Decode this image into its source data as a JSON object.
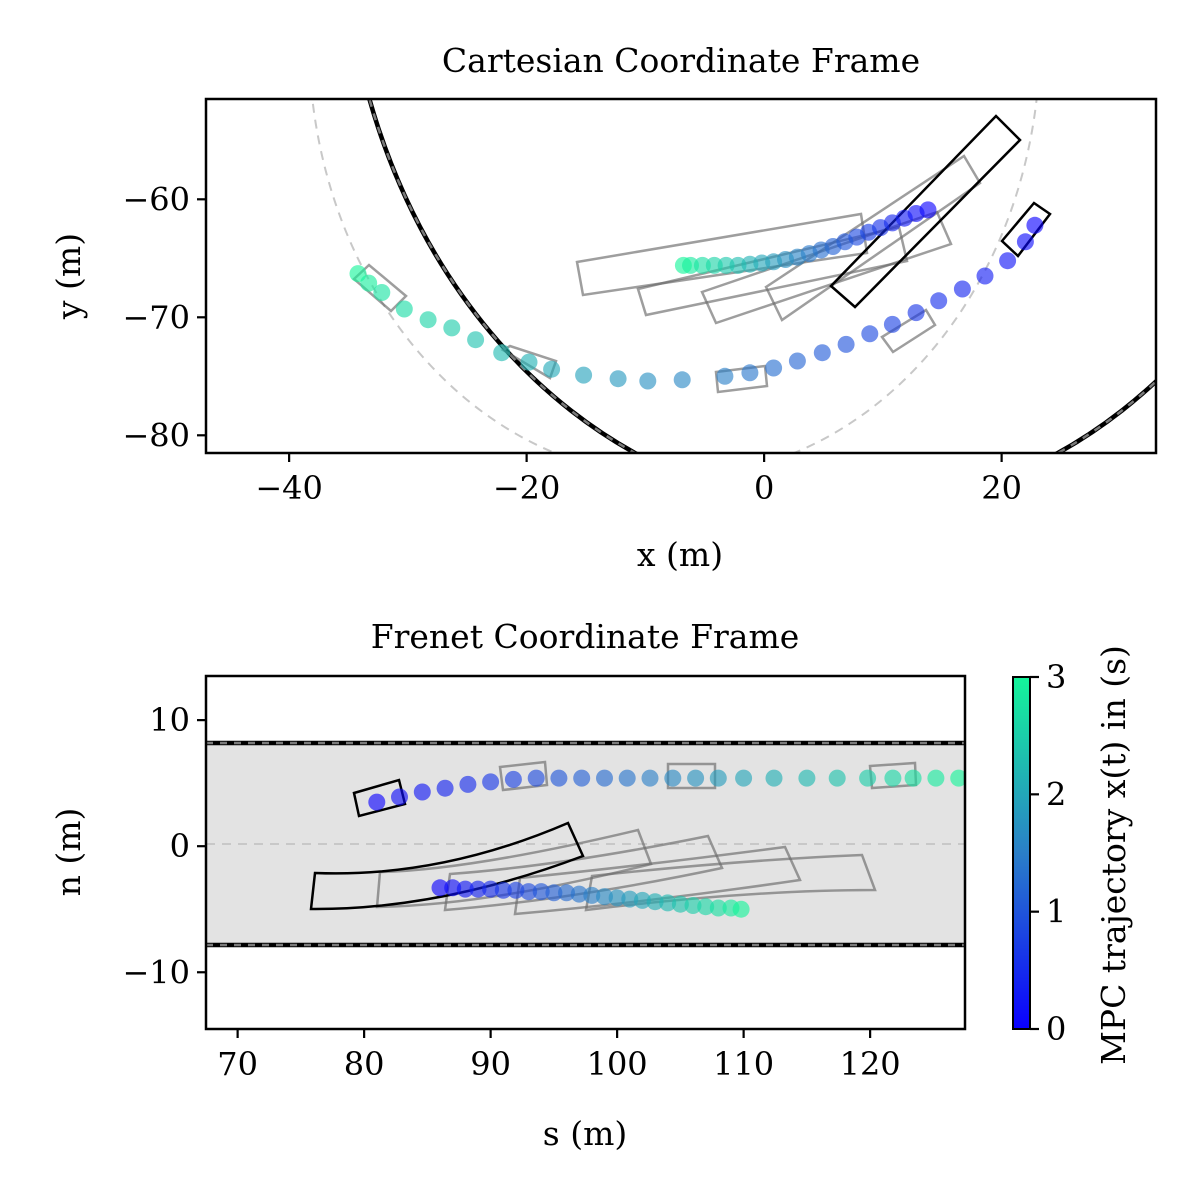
{
  "colors": {
    "road": "#e3e3e3",
    "boundary": "#000000",
    "boundary_dash": "#7a7a7a",
    "centerline": "#c8c8c8",
    "cmap_low": "#0a00ff",
    "cmap_mid": "#2a7fc8",
    "cmap_high": "#14f59a",
    "ghost_box": "#6a6a6a"
  },
  "colorbar": {
    "label": "MPC trajectory x(t) in (s)",
    "ticks": [
      "0",
      "1",
      "2",
      "3"
    ],
    "range": [
      0,
      3
    ]
  },
  "chart_data": [
    {
      "type": "scatter",
      "title": "Cartesian Coordinate Frame",
      "xlabel": "x (m)",
      "ylabel": "y (m)",
      "xlim": [
        -47,
        33
      ],
      "ylim": [
        -81.5,
        -51.5
      ],
      "xticks": [
        "−40",
        "−20",
        "0",
        "20"
      ],
      "xtick_values": [
        -40,
        -20,
        0,
        20
      ],
      "yticks": [
        "−60",
        "−70",
        "−80"
      ],
      "ytick_values": [
        -60,
        -70,
        -80
      ],
      "road": {
        "center": [
          -8,
          -52
        ],
        "inner_radius": 10,
        "outer_radius": 26,
        "centerline_radius": 18
      },
      "series": [
        {
          "points": [
            [
              22.8,
              -62.2
            ],
            [
              22.0,
              -63.6
            ],
            [
              20.5,
              -65.2
            ],
            [
              18.6,
              -66.5
            ],
            [
              16.7,
              -67.6
            ],
            [
              14.7,
              -68.6
            ],
            [
              12.8,
              -69.6
            ],
            [
              10.8,
              -70.6
            ],
            [
              8.9,
              -71.4
            ],
            [
              6.9,
              -72.3
            ],
            [
              4.9,
              -73.0
            ],
            [
              2.8,
              -73.7
            ],
            [
              0.8,
              -74.3
            ],
            [
              -1.2,
              -74.7
            ],
            [
              -3.3,
              -75.0
            ],
            [
              -6.9,
              -75.3
            ],
            [
              -9.8,
              -75.4
            ],
            [
              -12.3,
              -75.2
            ],
            [
              -15.2,
              -74.9
            ],
            [
              -17.9,
              -74.4
            ],
            [
              -19.8,
              -73.8
            ],
            [
              -22.1,
              -73.0
            ],
            [
              -24.3,
              -71.9
            ],
            [
              -26.3,
              -70.9
            ],
            [
              -28.3,
              -70.2
            ],
            [
              -30.3,
              -69.3
            ],
            [
              -32.2,
              -67.9
            ],
            [
              -33.3,
              -67.1
            ],
            [
              -34.2,
              -66.3
            ]
          ],
          "tmax": 3
        },
        {
          "points": [
            [
              13.8,
              -60.9
            ],
            [
              12.8,
              -61.2
            ],
            [
              11.8,
              -61.6
            ],
            [
              10.8,
              -62.0
            ],
            [
              9.8,
              -62.4
            ],
            [
              8.8,
              -62.8
            ],
            [
              7.8,
              -63.2
            ],
            [
              6.8,
              -63.6
            ],
            [
              5.8,
              -64.0
            ],
            [
              4.8,
              -64.3
            ],
            [
              3.8,
              -64.6
            ],
            [
              2.8,
              -64.9
            ],
            [
              1.8,
              -65.1
            ],
            [
              0.8,
              -65.3
            ],
            [
              -0.2,
              -65.4
            ],
            [
              -1.2,
              -65.5
            ],
            [
              -2.2,
              -65.6
            ],
            [
              -3.2,
              -65.6
            ],
            [
              -4.2,
              -65.6
            ],
            [
              -5.2,
              -65.6
            ],
            [
              -6.2,
              -65.6
            ],
            [
              -6.8,
              -65.6
            ]
          ],
          "tmax": 3
        }
      ]
    },
    {
      "type": "scatter",
      "title": "Frenet Coordinate Frame",
      "xlabel": "s (m)",
      "ylabel": "n (m)",
      "xlim": [
        67.5,
        127.5
      ],
      "ylim": [
        -14.5,
        13.5
      ],
      "xticks": [
        "70",
        "80",
        "90",
        "100",
        "110",
        "120"
      ],
      "xtick_values": [
        70,
        80,
        90,
        100,
        110,
        120
      ],
      "yticks": [
        "10",
        "0",
        "−10"
      ],
      "ytick_values": [
        10,
        0,
        -10
      ],
      "road": {
        "upper": 8,
        "lower": -8,
        "centerline": 0
      },
      "series": [
        {
          "points": [
            [
              81.0,
              3.5
            ],
            [
              82.8,
              3.9
            ],
            [
              84.6,
              4.3
            ],
            [
              86.4,
              4.6
            ],
            [
              88.2,
              4.9
            ],
            [
              90.0,
              5.1
            ],
            [
              91.8,
              5.3
            ],
            [
              93.6,
              5.4
            ],
            [
              95.4,
              5.4
            ],
            [
              97.2,
              5.4
            ],
            [
              99.0,
              5.4
            ],
            [
              100.8,
              5.4
            ],
            [
              102.6,
              5.4
            ],
            [
              104.4,
              5.4
            ],
            [
              106.2,
              5.4
            ],
            [
              108.0,
              5.4
            ],
            [
              110.0,
              5.4
            ],
            [
              112.4,
              5.4
            ],
            [
              115.0,
              5.4
            ],
            [
              117.4,
              5.4
            ],
            [
              119.8,
              5.4
            ],
            [
              121.8,
              5.4
            ],
            [
              123.4,
              5.4
            ],
            [
              125.2,
              5.4
            ],
            [
              127.0,
              5.4
            ]
          ],
          "tmax": 3
        },
        {
          "points": [
            [
              86.0,
              -3.3
            ],
            [
              87.0,
              -3.3
            ],
            [
              88.0,
              -3.4
            ],
            [
              89.0,
              -3.4
            ],
            [
              90.0,
              -3.4
            ],
            [
              91.0,
              -3.5
            ],
            [
              92.0,
              -3.5
            ],
            [
              93.0,
              -3.6
            ],
            [
              94.0,
              -3.6
            ],
            [
              95.0,
              -3.7
            ],
            [
              96.0,
              -3.7
            ],
            [
              97.0,
              -3.8
            ],
            [
              98.0,
              -3.9
            ],
            [
              99.0,
              -4.0
            ],
            [
              100.0,
              -4.1
            ],
            [
              101.0,
              -4.2
            ],
            [
              102.0,
              -4.3
            ],
            [
              103.0,
              -4.4
            ],
            [
              104.0,
              -4.5
            ],
            [
              105.0,
              -4.6
            ],
            [
              106.0,
              -4.7
            ],
            [
              107.0,
              -4.8
            ],
            [
              108.0,
              -4.9
            ],
            [
              109.0,
              -4.9
            ],
            [
              109.8,
              -5.0
            ]
          ],
          "tmax": 3
        }
      ]
    }
  ]
}
